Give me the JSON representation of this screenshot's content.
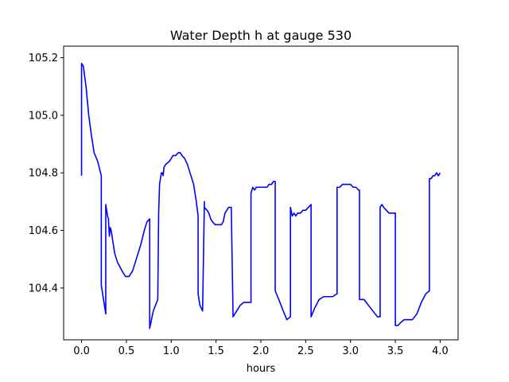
{
  "chart_data": {
    "type": "line",
    "title": "Water Depth h at gauge 530",
    "xlabel": "hours",
    "ylabel": "",
    "xlim": [
      -0.2,
      4.2
    ],
    "ylim": [
      104.22,
      105.24
    ],
    "x_ticks": [
      0.0,
      0.5,
      1.0,
      1.5,
      2.0,
      2.5,
      3.0,
      3.5,
      4.0
    ],
    "x_tick_labels": [
      "0.0",
      "0.5",
      "1.0",
      "1.5",
      "2.0",
      "2.5",
      "3.0",
      "3.5",
      "4.0"
    ],
    "y_ticks": [
      104.4,
      104.6,
      104.8,
      105.0,
      105.2
    ],
    "y_tick_labels": [
      "104.4",
      "104.6",
      "104.8",
      "105.0",
      "105.2"
    ],
    "grid": false,
    "series": [
      {
        "color": "#0000ff",
        "x": [
          0.0,
          0.0,
          0.02,
          0.05,
          0.08,
          0.11,
          0.14,
          0.18,
          0.22,
          0.22,
          0.24,
          0.27,
          0.27,
          0.29,
          0.3,
          0.31,
          0.32,
          0.33,
          0.35,
          0.37,
          0.4,
          0.45,
          0.49,
          0.53,
          0.57,
          0.6,
          0.63,
          0.66,
          0.7,
          0.73,
          0.76,
          0.76,
          0.8,
          0.85,
          0.86,
          0.87,
          0.89,
          0.9,
          0.91,
          0.92,
          0.94,
          0.98,
          1.02,
          1.05,
          1.08,
          1.1,
          1.12,
          1.15,
          1.18,
          1.21,
          1.25,
          1.28,
          1.3,
          1.3,
          1.32,
          1.35,
          1.37,
          1.37,
          1.4,
          1.42,
          1.44,
          1.46,
          1.49,
          1.51,
          1.53,
          1.56,
          1.58,
          1.6,
          1.62,
          1.64,
          1.67,
          1.69,
          1.69,
          1.73,
          1.77,
          1.81,
          1.86,
          1.89,
          1.89,
          1.91,
          1.93,
          1.95,
          1.97,
          1.99,
          2.01,
          2.03,
          2.05,
          2.07,
          2.09,
          2.12,
          2.14,
          2.16,
          2.16,
          2.2,
          2.25,
          2.29,
          2.33,
          2.33,
          2.35,
          2.37,
          2.39,
          2.41,
          2.44,
          2.47,
          2.5,
          2.53,
          2.56,
          2.56,
          2.6,
          2.65,
          2.7,
          2.75,
          2.8,
          2.85,
          2.85,
          2.88,
          2.91,
          2.94,
          2.97,
          3.0,
          3.03,
          3.06,
          3.09,
          3.1,
          3.1,
          3.15,
          3.2,
          3.25,
          3.3,
          3.33,
          3.33,
          3.35,
          3.37,
          3.4,
          3.43,
          3.46,
          3.5,
          3.5,
          3.53,
          3.56,
          3.6,
          3.64,
          3.69,
          3.74,
          3.79,
          3.84,
          3.88,
          3.88,
          3.9,
          3.92,
          3.94,
          3.96,
          3.98,
          4.0
        ],
        "y": [
          104.79,
          105.18,
          105.17,
          105.1,
          105.0,
          104.93,
          104.87,
          104.84,
          104.79,
          104.41,
          104.37,
          104.31,
          104.69,
          104.65,
          104.64,
          104.58,
          104.61,
          104.6,
          104.56,
          104.52,
          104.49,
          104.46,
          104.44,
          104.44,
          104.46,
          104.49,
          104.52,
          104.55,
          104.6,
          104.63,
          104.64,
          104.26,
          104.32,
          104.36,
          104.66,
          104.76,
          104.8,
          104.8,
          104.79,
          104.82,
          104.83,
          104.84,
          104.86,
          104.86,
          104.87,
          104.87,
          104.86,
          104.85,
          104.83,
          104.8,
          104.76,
          104.7,
          104.65,
          104.38,
          104.34,
          104.32,
          104.7,
          104.68,
          104.67,
          104.66,
          104.64,
          104.63,
          104.62,
          104.62,
          104.62,
          104.62,
          104.63,
          104.66,
          104.67,
          104.68,
          104.68,
          104.3,
          104.3,
          104.32,
          104.34,
          104.35,
          104.35,
          104.35,
          104.73,
          104.75,
          104.74,
          104.75,
          104.75,
          104.75,
          104.75,
          104.75,
          104.75,
          104.75,
          104.76,
          104.76,
          104.77,
          104.77,
          104.39,
          104.36,
          104.32,
          104.29,
          104.3,
          104.68,
          104.65,
          104.66,
          104.65,
          104.66,
          104.66,
          104.67,
          104.67,
          104.68,
          104.69,
          104.3,
          104.33,
          104.36,
          104.37,
          104.37,
          104.37,
          104.38,
          104.75,
          104.75,
          104.76,
          104.76,
          104.76,
          104.76,
          104.75,
          104.75,
          104.74,
          104.74,
          104.36,
          104.36,
          104.34,
          104.32,
          104.3,
          104.3,
          104.68,
          104.69,
          104.68,
          104.67,
          104.66,
          104.66,
          104.66,
          104.27,
          104.27,
          104.28,
          104.29,
          104.29,
          104.29,
          104.31,
          104.35,
          104.38,
          104.39,
          104.78,
          104.78,
          104.79,
          104.79,
          104.8,
          104.79,
          104.8
        ]
      }
    ]
  }
}
